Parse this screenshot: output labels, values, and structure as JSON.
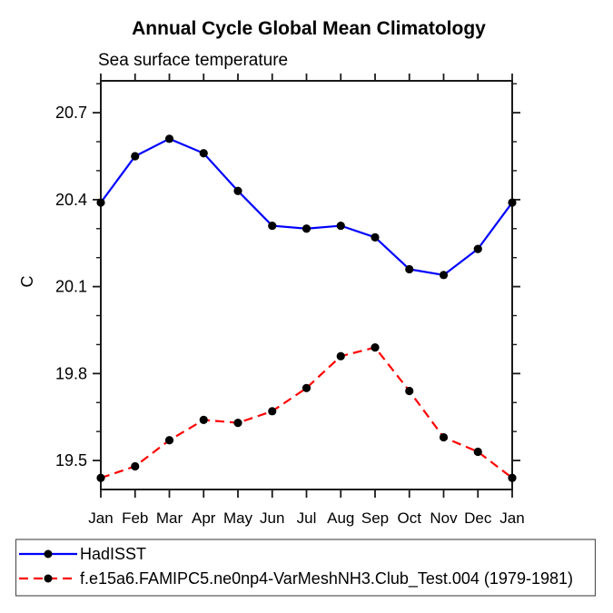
{
  "page": {
    "background": "#ffffff"
  },
  "chart_data": {
    "type": "line",
    "title": "Annual Cycle Global Mean Climatology",
    "subtitle": "Sea surface temperature",
    "xlabel": "",
    "ylabel": "C",
    "categories": [
      "Jan",
      "Feb",
      "Mar",
      "Apr",
      "May",
      "Jun",
      "Jul",
      "Aug",
      "Sep",
      "Oct",
      "Nov",
      "Dec",
      "Jan"
    ],
    "series": [
      {
        "name": "HadISST",
        "color": "#0000ff",
        "style": "solid",
        "marker": "filled-circle",
        "values": [
          20.39,
          20.55,
          20.61,
          20.56,
          20.43,
          20.31,
          20.3,
          20.31,
          20.27,
          20.16,
          20.14,
          20.23,
          20.39
        ]
      },
      {
        "name": "f.e15a6.FAMIPC5.ne0np4-VarMeshNH3.Club_Test.004 (1979-1981)",
        "color": "#ff0000",
        "style": "dashed",
        "marker": "filled-circle",
        "values": [
          19.44,
          19.48,
          19.57,
          19.64,
          19.63,
          19.67,
          19.75,
          19.86,
          19.89,
          19.74,
          19.58,
          19.53,
          19.44
        ]
      }
    ],
    "ylim": [
      19.4,
      20.81
    ],
    "yticks_major": [
      19.5,
      19.8,
      20.1,
      20.4,
      20.7
    ],
    "ytick_minor_step": 0.1,
    "grid": false,
    "legend_position": "bottom-box",
    "axis_color": "#1a1a1a",
    "marker_color": "#000000",
    "text_color": "#000000"
  }
}
